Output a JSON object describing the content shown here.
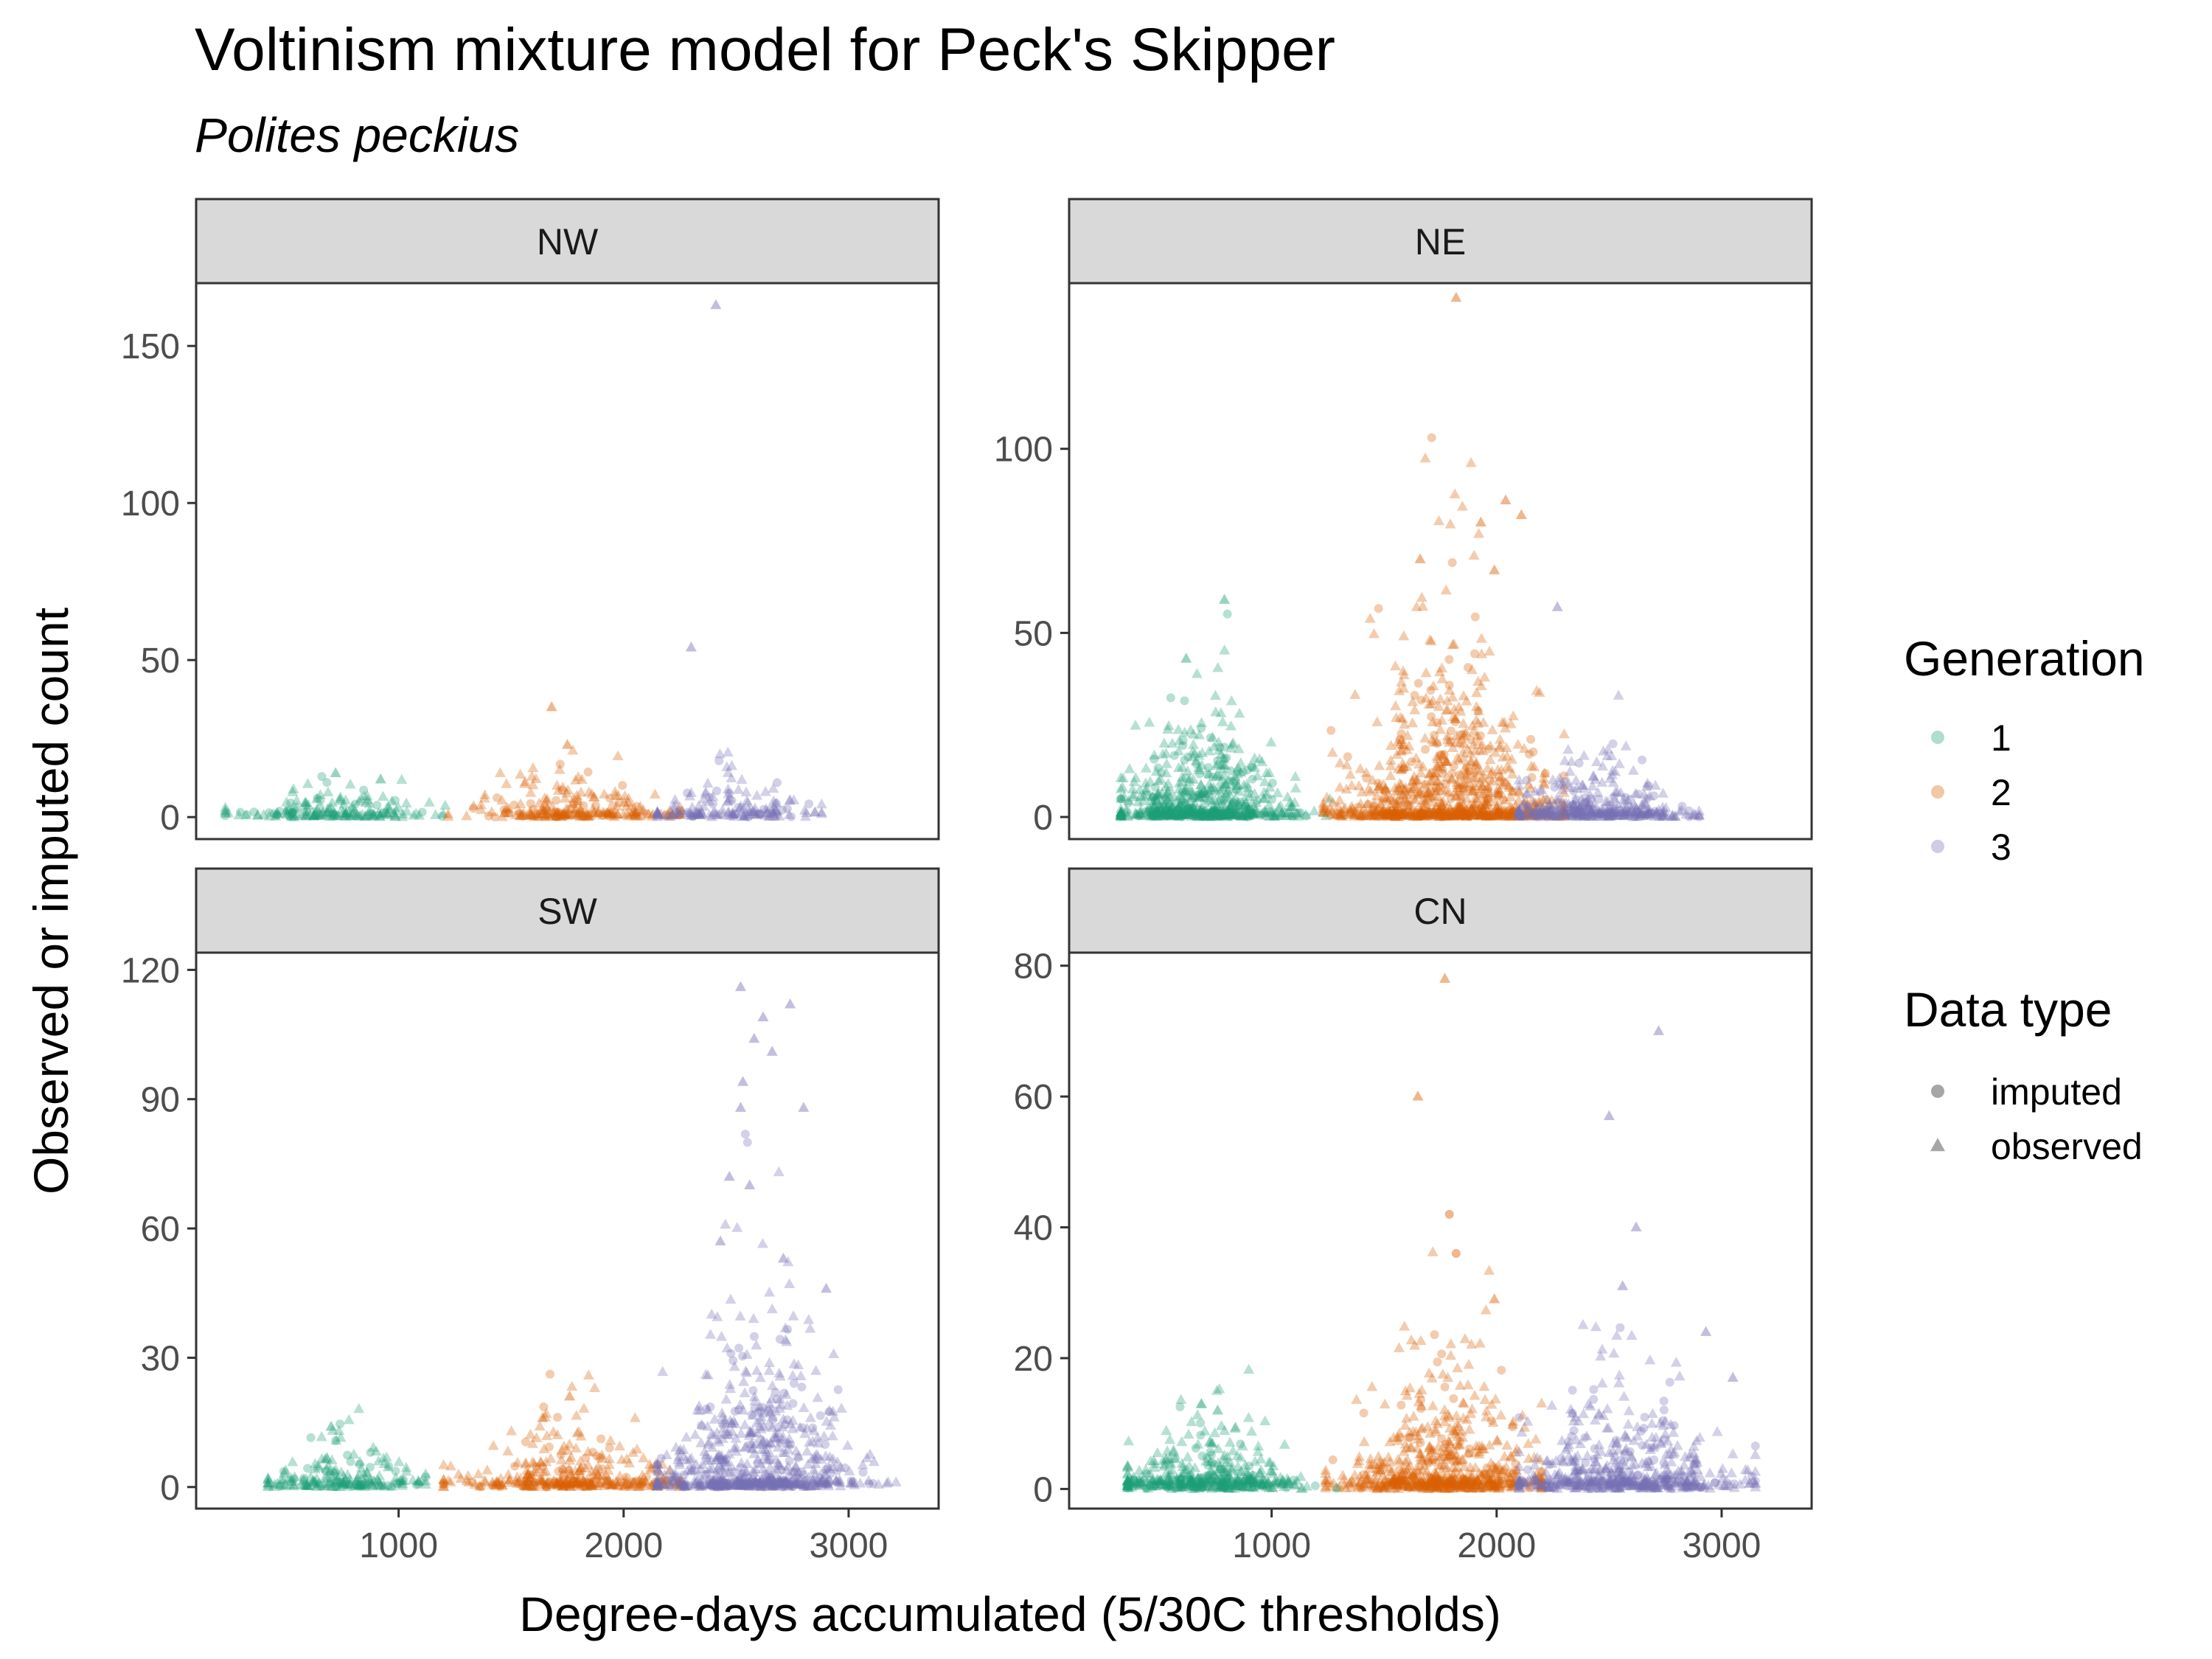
{
  "chart_data": {
    "type": "scatter",
    "title": "Voltinism mixture model for Peck's Skipper",
    "subtitle": "Polites peckius",
    "xlabel": "Degree-days accumulated (5/30C thresholds)",
    "ylabel": "Observed or imputed count",
    "xlim": [
      100,
      3400
    ],
    "x_ticks": [
      1000,
      2000,
      3000
    ],
    "grid": false,
    "legend_position": "right",
    "generation_legend": {
      "title": "Generation",
      "entries": [
        {
          "label": "1",
          "color": "#1B9E77"
        },
        {
          "label": "2",
          "color": "#D95F02"
        },
        {
          "label": "3",
          "color": "#7570B3"
        }
      ]
    },
    "datatype_legend": {
      "title": "Data type",
      "entries": [
        {
          "label": "imputed",
          "shape": "circle"
        },
        {
          "label": "observed",
          "shape": "triangle"
        }
      ]
    },
    "panels": [
      {
        "region": "NW",
        "ylim": [
          -7,
          170
        ],
        "y_ticks": [
          0,
          50,
          100,
          150
        ],
        "generations": [
          {
            "gen": 1,
            "x_range": [
              230,
              1290
            ],
            "x_center": 700,
            "x_sd": 230,
            "count_scale": 3,
            "n": 180
          },
          {
            "gen": 2,
            "x_range": [
              1220,
              2250
            ],
            "x_center": 1750,
            "x_sd": 230,
            "count_scale": 5,
            "n": 230
          },
          {
            "gen": 3,
            "x_range": [
              2150,
              2880
            ],
            "x_center": 2480,
            "x_sd": 200,
            "count_scale": 4,
            "n": 160
          }
        ],
        "highlights": [
          {
            "gen": 3,
            "type": "observed",
            "x": 2410,
            "y": 163
          },
          {
            "gen": 3,
            "type": "observed",
            "x": 2300,
            "y": 54
          },
          {
            "gen": 2,
            "type": "observed",
            "x": 1680,
            "y": 35
          },
          {
            "gen": 2,
            "type": "observed",
            "x": 1750,
            "y": 23
          },
          {
            "gen": 1,
            "type": "observed",
            "x": 720,
            "y": 14
          },
          {
            "gen": 1,
            "type": "observed",
            "x": 920,
            "y": 12
          }
        ]
      },
      {
        "region": "NE",
        "ylim": [
          -6,
          145
        ],
        "y_ticks": [
          0,
          50,
          100
        ],
        "generations": [
          {
            "gen": 1,
            "x_range": [
              330,
              1290
            ],
            "x_center": 700,
            "x_sd": 200,
            "count_scale": 8,
            "n": 650
          },
          {
            "gen": 2,
            "x_range": [
              1230,
              2300
            ],
            "x_center": 1780,
            "x_sd": 240,
            "count_scale": 14,
            "n": 900
          },
          {
            "gen": 3,
            "x_range": [
              2100,
              2900
            ],
            "x_center": 2450,
            "x_sd": 210,
            "count_scale": 5,
            "n": 380
          }
        ],
        "highlights": [
          {
            "gen": 2,
            "type": "observed",
            "x": 1820,
            "y": 141
          },
          {
            "gen": 2,
            "type": "observed",
            "x": 2040,
            "y": 86
          },
          {
            "gen": 2,
            "type": "observed",
            "x": 2110,
            "y": 82
          },
          {
            "gen": 2,
            "type": "observed",
            "x": 1930,
            "y": 80
          },
          {
            "gen": 2,
            "type": "observed",
            "x": 1660,
            "y": 70
          },
          {
            "gen": 2,
            "type": "observed",
            "x": 1990,
            "y": 67
          },
          {
            "gen": 1,
            "type": "observed",
            "x": 790,
            "y": 59
          },
          {
            "gen": 3,
            "type": "observed",
            "x": 2270,
            "y": 57
          },
          {
            "gen": 1,
            "type": "observed",
            "x": 620,
            "y": 43
          }
        ]
      },
      {
        "region": "SW",
        "ylim": [
          -5,
          124
        ],
        "y_ticks": [
          0,
          30,
          60,
          90,
          120
        ],
        "generations": [
          {
            "gen": 1,
            "x_range": [
              420,
              1120
            ],
            "x_center": 760,
            "x_sd": 190,
            "count_scale": 3,
            "n": 200
          },
          {
            "gen": 2,
            "x_range": [
              1200,
              2250
            ],
            "x_center": 1750,
            "x_sd": 260,
            "count_scale": 4,
            "n": 350
          },
          {
            "gen": 3,
            "x_range": [
              2150,
              3300
            ],
            "x_center": 2600,
            "x_sd": 220,
            "count_scale": 12,
            "n": 700
          }
        ],
        "highlights": [
          {
            "gen": 3,
            "type": "observed",
            "x": 2520,
            "y": 116
          },
          {
            "gen": 3,
            "type": "observed",
            "x": 2740,
            "y": 112
          },
          {
            "gen": 3,
            "type": "observed",
            "x": 2620,
            "y": 109
          },
          {
            "gen": 3,
            "type": "observed",
            "x": 2580,
            "y": 104
          },
          {
            "gen": 3,
            "type": "observed",
            "x": 2660,
            "y": 101
          },
          {
            "gen": 3,
            "type": "observed",
            "x": 2530,
            "y": 94
          },
          {
            "gen": 3,
            "type": "observed",
            "x": 2520,
            "y": 88
          },
          {
            "gen": 3,
            "type": "observed",
            "x": 2800,
            "y": 88
          },
          {
            "gen": 3,
            "type": "observed",
            "x": 2470,
            "y": 72
          },
          {
            "gen": 3,
            "type": "observed",
            "x": 2560,
            "y": 70
          },
          {
            "gen": 3,
            "type": "observed",
            "x": 2430,
            "y": 57
          },
          {
            "gen": 3,
            "type": "observed",
            "x": 2710,
            "y": 53
          },
          {
            "gen": 3,
            "type": "observed",
            "x": 2900,
            "y": 46
          },
          {
            "gen": 2,
            "type": "observed",
            "x": 1760,
            "y": 21
          },
          {
            "gen": 2,
            "type": "observed",
            "x": 1640,
            "y": 16
          },
          {
            "gen": 1,
            "type": "observed",
            "x": 700,
            "y": 14
          }
        ]
      },
      {
        "region": "CN",
        "ylim": [
          -3,
          82
        ],
        "y_ticks": [
          0,
          20,
          40,
          60,
          80
        ],
        "generations": [
          {
            "gen": 1,
            "x_range": [
              360,
              1290
            ],
            "x_center": 720,
            "x_sd": 210,
            "count_scale": 3,
            "n": 450
          },
          {
            "gen": 2,
            "x_range": [
              1240,
              2200
            ],
            "x_center": 1780,
            "x_sd": 230,
            "count_scale": 6,
            "n": 650
          },
          {
            "gen": 3,
            "x_range": [
              2100,
              3150
            ],
            "x_center": 2550,
            "x_sd": 240,
            "count_scale": 5,
            "n": 550
          }
        ],
        "highlights": [
          {
            "gen": 2,
            "type": "observed",
            "x": 1770,
            "y": 78
          },
          {
            "gen": 3,
            "type": "observed",
            "x": 2720,
            "y": 70
          },
          {
            "gen": 2,
            "type": "observed",
            "x": 1650,
            "y": 60
          },
          {
            "gen": 3,
            "type": "observed",
            "x": 2500,
            "y": 57
          },
          {
            "gen": 2,
            "type": "imputed",
            "x": 1790,
            "y": 42
          },
          {
            "gen": 3,
            "type": "observed",
            "x": 2620,
            "y": 40
          },
          {
            "gen": 2,
            "type": "imputed",
            "x": 1820,
            "y": 36
          },
          {
            "gen": 3,
            "type": "observed",
            "x": 2560,
            "y": 31
          },
          {
            "gen": 2,
            "type": "observed",
            "x": 1990,
            "y": 29
          },
          {
            "gen": 3,
            "type": "observed",
            "x": 2930,
            "y": 24
          },
          {
            "gen": 3,
            "type": "observed",
            "x": 3050,
            "y": 17
          },
          {
            "gen": 1,
            "type": "observed",
            "x": 760,
            "y": 12
          }
        ]
      }
    ]
  }
}
